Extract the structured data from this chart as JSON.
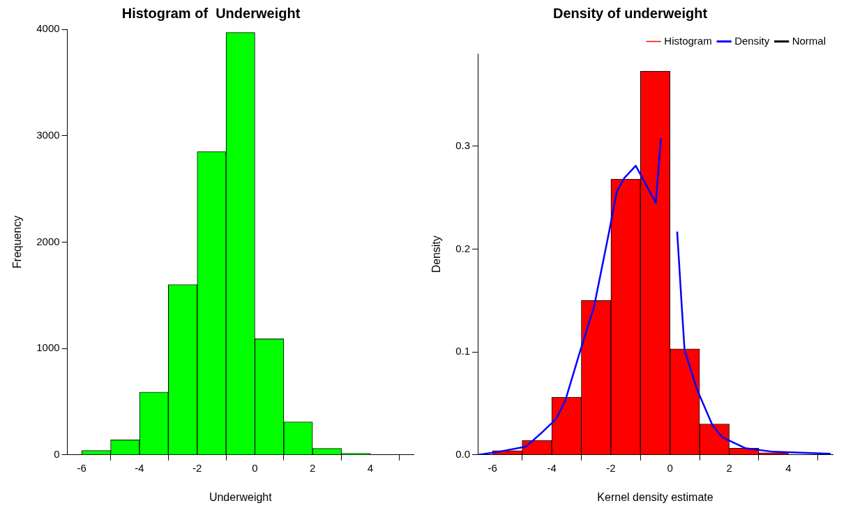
{
  "chart_data": [
    {
      "type": "histogram",
      "title": "Histogram of  Underweight",
      "xlabel": "Underweight",
      "ylabel": "Frequency",
      "bins": [
        -6,
        -5,
        -4,
        -3,
        -2,
        -1,
        0,
        1,
        2,
        3,
        4,
        5
      ],
      "values": [
        40,
        140,
        590,
        1600,
        2850,
        3970,
        1090,
        310,
        60,
        15,
        null
      ],
      "color": "#00ff00",
      "xlim": [
        -6.5,
        5.5
      ],
      "xticks": [
        -6,
        -4,
        -2,
        0,
        2,
        4
      ],
      "ylim": [
        0,
        4000
      ],
      "yticks": [
        0,
        1000,
        2000,
        3000,
        4000
      ],
      "grid": false,
      "legend": false
    },
    {
      "type": "histogram",
      "title": "Density of underweight",
      "xlabel": "Kernel density estimate",
      "ylabel": "Density",
      "bins": [
        -6,
        -5,
        -4,
        -3,
        -2,
        -1,
        0,
        1,
        2,
        3,
        4,
        5
      ],
      "series": [
        {
          "name": "Histogram",
          "color": "#ff0000",
          "values": [
            0.004,
            0.014,
            0.056,
            0.15,
            0.268,
            0.373,
            0.103,
            0.03,
            0.0065,
            0.002,
            null
          ]
        },
        {
          "name": "Density",
          "type": "line",
          "color": "#0000ff",
          "x": [
            -6.49,
            -5.8,
            -4.87,
            -4.36,
            -3.85,
            -3.55,
            -3.08,
            -2.57,
            -2.06,
            -1.8,
            -1.55,
            -1.16,
            -0.48,
            -0.31,
            -0.2,
            0.07,
            0.24,
            0.41,
            0.49,
            0.92,
            1.43,
            1.77,
            2.54,
            3.48,
            5.43
          ],
          "values": [
            0,
            0.003,
            0.008,
            0.021,
            0.035,
            0.052,
            0.097,
            0.144,
            0.217,
            0.256,
            0.269,
            0.281,
            0.245,
            0.308,
            null,
            null,
            0.217,
            0.138,
            0.102,
            0.063,
            0.029,
            0.017,
            0.0065,
            0.003,
            0.001
          ]
        },
        {
          "name": "Normal",
          "type": "line",
          "color": "#000000"
        }
      ],
      "xlim": [
        -6.5,
        5.5
      ],
      "xticks": [
        -6,
        -4,
        -2,
        0,
        2,
        4
      ],
      "ylim": [
        0,
        0.39
      ],
      "yticks": [
        {
          "value": 0,
          "label": "0.0"
        },
        0.1,
        0.2,
        0.3
      ],
      "grid": false,
      "legend": "top right"
    }
  ]
}
